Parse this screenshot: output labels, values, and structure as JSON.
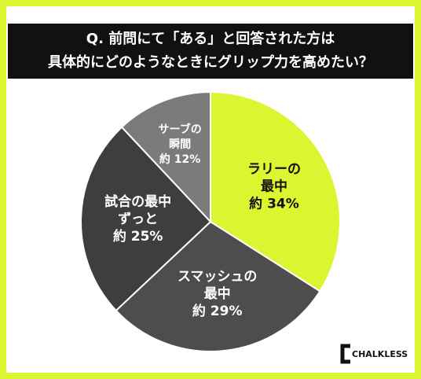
{
  "chart_data": {
    "type": "pie",
    "title": [
      "Q. 前問にて「ある」と回答された方は",
      "具体的にどのようなときにグリップ力を高めたい？"
    ],
    "categories": [
      [
        "ラリーの",
        "最中"
      ],
      [
        "スマッシュの",
        "最中"
      ],
      [
        "試合の最中",
        "ずっと"
      ],
      [
        "サーブの",
        "瞬間"
      ]
    ],
    "values": [
      34,
      29,
      25,
      12
    ],
    "value_labels": [
      "約 34%",
      "約 29%",
      "約 25%",
      "約 12%"
    ],
    "colors": [
      "#dcf531",
      "#4d4d4d",
      "#3e3e3e",
      "#7b7b7b"
    ],
    "label_colors": [
      "#111111",
      "#ffffff",
      "#ffffff",
      "#ffffff"
    ],
    "logo": "CHALKLESS"
  }
}
